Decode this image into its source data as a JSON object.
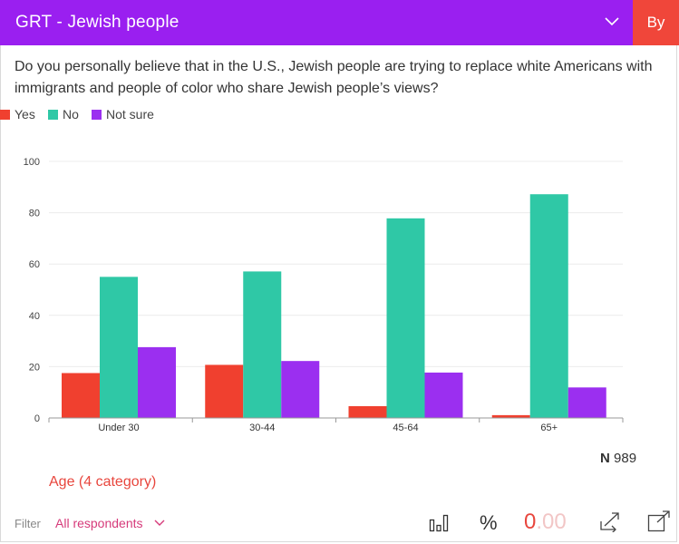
{
  "header": {
    "title": "GRT - Jewish people",
    "by_label": "By"
  },
  "question": "Do you personally believe that in the U.S., Jewish people are trying to replace white Americans with immigrants and people of color who share Jewish people’s views?",
  "legend": [
    {
      "label": "Yes",
      "color": "#f0402f"
    },
    {
      "label": "No",
      "color": "#2fc8a6"
    },
    {
      "label": "Not sure",
      "color": "#9b2ff0"
    }
  ],
  "chart_data": {
    "type": "bar",
    "categories": [
      "Under 30",
      "30-44",
      "45-64",
      "65+"
    ],
    "series": [
      {
        "name": "Yes",
        "values": [
          17.5,
          20.7,
          4.6,
          1.1
        ]
      },
      {
        "name": "No",
        "values": [
          55,
          57.1,
          77.8,
          87.2
        ]
      },
      {
        "name": "Not sure",
        "values": [
          27.6,
          22.2,
          17.7,
          11.9
        ]
      }
    ],
    "ylim": [
      0,
      100
    ],
    "yticks": [
      0,
      20,
      40,
      60,
      80,
      100
    ],
    "grid": true
  },
  "n_label": {
    "prefix": "N",
    "value": "989"
  },
  "breakdown_label": "Age (4 category)",
  "filter": {
    "label": "Filter",
    "value": "All respondents"
  },
  "toolbar": {
    "percent": "%",
    "decimals_a": "0",
    "decimals_b": ".00"
  }
}
